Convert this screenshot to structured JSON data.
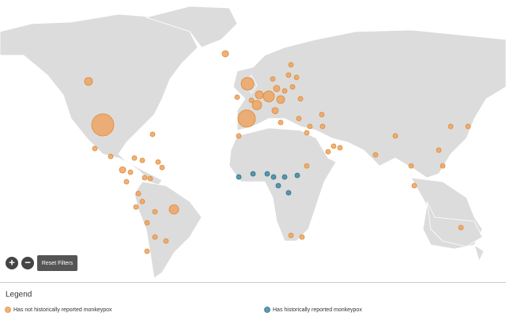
{
  "controls": {
    "zoom_in": "+",
    "zoom_out": "−",
    "reset_filters": "Reset Filters"
  },
  "legend": {
    "title": "Legend",
    "items": [
      "Has not historically reported monkeypox",
      "Has historically reported monkeypox"
    ]
  }
}
